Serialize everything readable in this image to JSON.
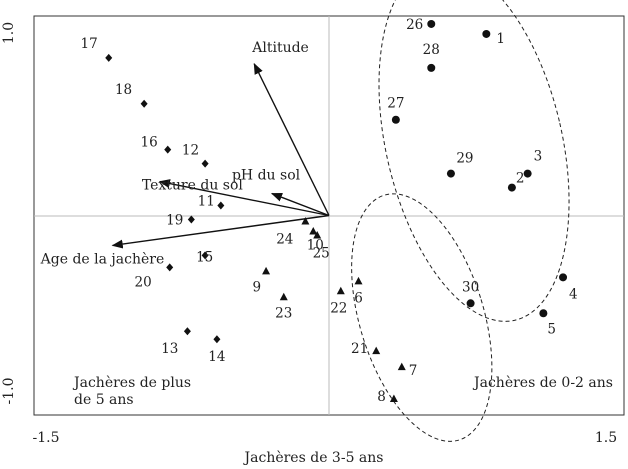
{
  "chart_data": {
    "type": "scatter",
    "xlim": [
      -1.5,
      1.5
    ],
    "ylim": [
      -1.0,
      1.0
    ],
    "x_ticks": [
      "-1.5",
      "1.5"
    ],
    "y_ticks": [
      "1.0",
      "-1.0"
    ],
    "title": "",
    "xlabel": "Jachères de 3-5 ans",
    "ylabel": "",
    "grid": false,
    "series": [
      {
        "marker": "diamond",
        "points": [
          {
            "label": "11",
            "x": -0.55,
            "y": 0.05
          },
          {
            "label": "12",
            "x": -0.63,
            "y": 0.26
          },
          {
            "label": "13",
            "x": -0.72,
            "y": -0.58
          },
          {
            "label": "14",
            "x": -0.57,
            "y": -0.62
          },
          {
            "label": "15",
            "x": -0.63,
            "y": -0.2
          },
          {
            "label": "16",
            "x": -0.82,
            "y": 0.33
          },
          {
            "label": "17",
            "x": -1.12,
            "y": 0.79
          },
          {
            "label": "18",
            "x": -0.94,
            "y": 0.56
          },
          {
            "label": "19",
            "x": -0.7,
            "y": -0.02
          },
          {
            "label": "20",
            "x": -0.81,
            "y": -0.26
          }
        ]
      },
      {
        "marker": "triangle",
        "points": [
          {
            "label": "6",
            "x": 0.15,
            "y": -0.33
          },
          {
            "label": "7",
            "x": 0.37,
            "y": -0.76
          },
          {
            "label": "8",
            "x": 0.33,
            "y": -0.92
          },
          {
            "label": "9",
            "x": -0.32,
            "y": -0.28
          },
          {
            "label": "10",
            "x": -0.08,
            "y": -0.08
          },
          {
            "label": "21",
            "x": 0.24,
            "y": -0.68
          },
          {
            "label": "22",
            "x": 0.06,
            "y": -0.38
          },
          {
            "label": "23",
            "x": -0.23,
            "y": -0.41
          },
          {
            "label": "24",
            "x": -0.12,
            "y": -0.03
          },
          {
            "label": "25",
            "x": -0.06,
            "y": -0.1
          }
        ]
      },
      {
        "marker": "circle",
        "points": [
          {
            "label": "1",
            "x": 0.8,
            "y": 0.91
          },
          {
            "label": "2",
            "x": 0.93,
            "y": 0.14
          },
          {
            "label": "3",
            "x": 1.01,
            "y": 0.21
          },
          {
            "label": "4",
            "x": 1.19,
            "y": -0.31
          },
          {
            "label": "5",
            "x": 1.09,
            "y": -0.49
          },
          {
            "label": "26",
            "x": 0.52,
            "y": 0.96
          },
          {
            "label": "27",
            "x": 0.34,
            "y": 0.48
          },
          {
            "label": "28",
            "x": 0.52,
            "y": 0.74
          },
          {
            "label": "29",
            "x": 0.62,
            "y": 0.21
          },
          {
            "label": "30",
            "x": 0.72,
            "y": -0.44
          }
        ]
      }
    ],
    "vectors": [
      {
        "label": "Altitude",
        "x": -0.38,
        "y": 0.76
      },
      {
        "label": "Texture du sol",
        "x": -0.86,
        "y": 0.17
      },
      {
        "label": "pH du sol",
        "x": -0.29,
        "y": 0.11
      },
      {
        "label": "Age de la jachère",
        "x": -1.1,
        "y": -0.15
      }
    ],
    "group_labels": [
      {
        "lines": [
          "Jachères de plus",
          "de 5 ans"
        ]
      },
      {
        "lines": [
          "Jachères de 0-2 ans"
        ]
      }
    ]
  }
}
